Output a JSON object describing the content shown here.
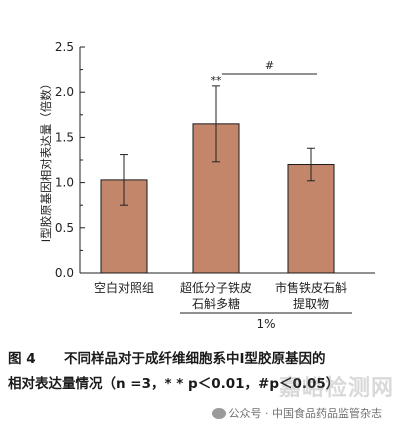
{
  "chart_data": {
    "type": "bar",
    "categories": [
      [
        "空白对照组"
      ],
      [
        "超低分子铁皮",
        "石斛多糖"
      ],
      [
        "市售铁皮石斛",
        "提取物"
      ]
    ],
    "values": [
      1.03,
      1.65,
      1.2
    ],
    "errors": [
      0.28,
      0.42,
      0.18
    ],
    "ylabel": "Ⅰ型胶原基因相对表达量（倍数）",
    "yticks": [
      "0.0",
      "0.5",
      "1.0",
      "1.5",
      "2.0",
      "2.5"
    ],
    "ylim": [
      0,
      2.5
    ],
    "annotations": {
      "star": "**",
      "hash": "#",
      "group_label": "1%"
    },
    "bar_color": "#c3866b",
    "edge_color": "#1a1a1a"
  },
  "caption": {
    "figure_no": "图 4",
    "line1": "不同样品对于成纤维细胞系中Ⅰ型胶原基因的",
    "line2": "相对表达量情况（n =3，* * p＜0.01，#p＜0.05）"
  },
  "watermark": {
    "text": "嘉峪检测网",
    "source": "公众号 · 中国食品药品监管杂志"
  }
}
